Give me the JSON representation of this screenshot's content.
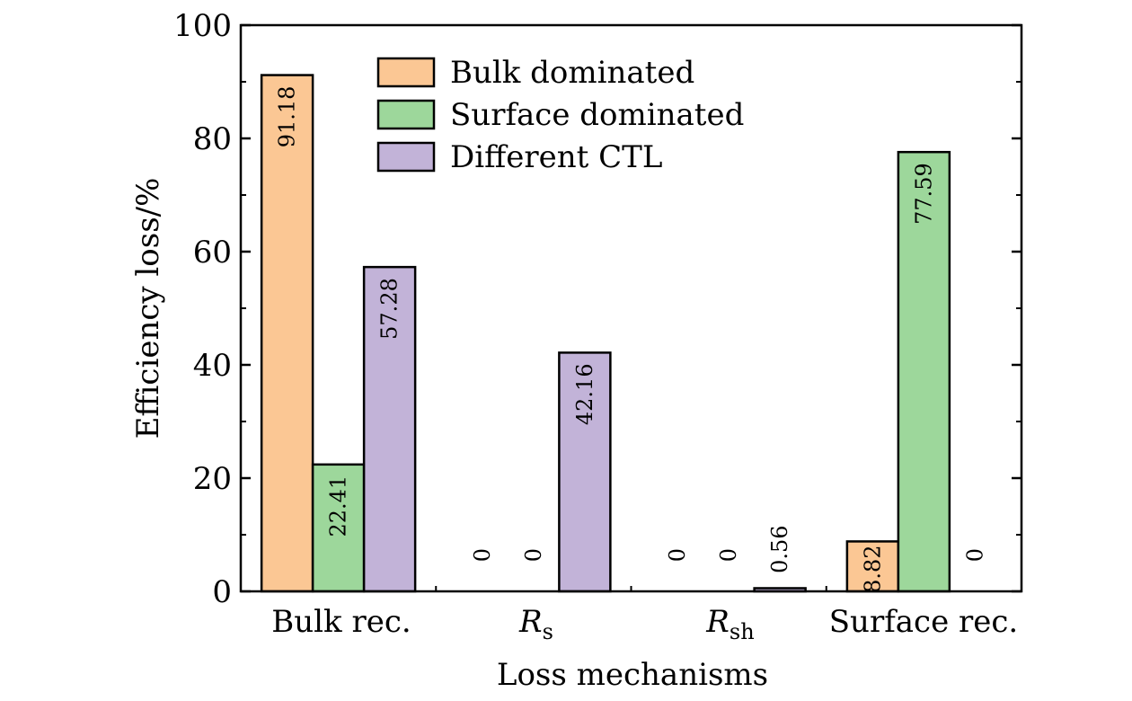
{
  "chart_data": {
    "type": "bar",
    "xlabel": "Loss mechanisms",
    "ylabel": "Efficiency loss/%",
    "ylim": [
      0,
      100
    ],
    "yticks": [
      "0",
      "20",
      "40",
      "60",
      "80",
      "100"
    ],
    "categories": [
      {
        "main": "Bulk rec.",
        "sub": "",
        "italic": false
      },
      {
        "main": "R",
        "sub": "s",
        "italic": true
      },
      {
        "main": "R",
        "sub": "sh",
        "italic": true
      },
      {
        "main": "Surface rec.",
        "sub": "",
        "italic": false
      }
    ],
    "series": [
      {
        "name": "Bulk dominated",
        "color": "#fbc794",
        "values": [
          91.18,
          0,
          0,
          8.82
        ],
        "labels": [
          "91.18",
          "0",
          "0",
          "8.82"
        ]
      },
      {
        "name": "Surface dominated",
        "color": "#9dd79b",
        "values": [
          22.41,
          0,
          0,
          77.59
        ],
        "labels": [
          "22.41",
          "0",
          "0",
          "77.59"
        ]
      },
      {
        "name": "Different CTL",
        "color": "#c2b3d8",
        "values": [
          57.28,
          42.16,
          0.56,
          0
        ],
        "labels": [
          "57.28",
          "42.16",
          "0.56",
          "0"
        ]
      }
    ],
    "legend_position": "top-center",
    "grid": false
  }
}
